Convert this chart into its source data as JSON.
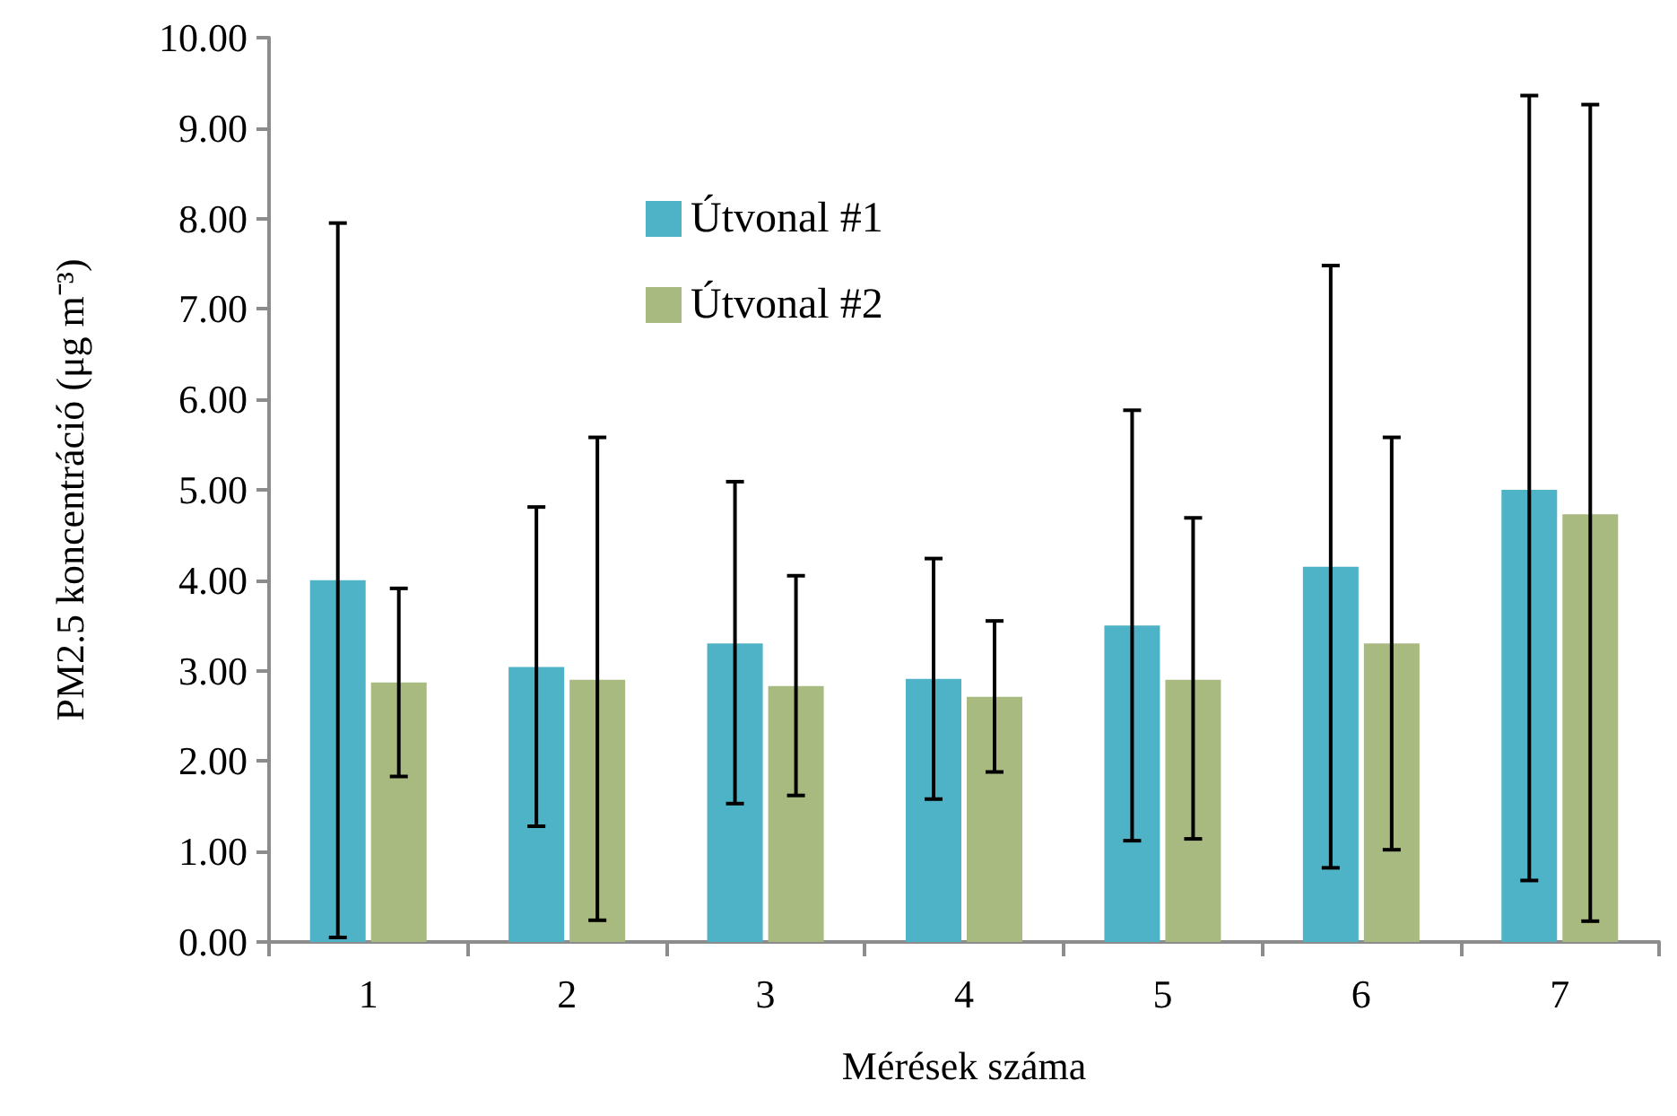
{
  "chart_data": {
    "type": "bar",
    "xlabel": "Mérések száma",
    "ylabel": "PM2.5 koncentráció (μg m⁻³)",
    "categories": [
      "1",
      "2",
      "3",
      "4",
      "5",
      "6",
      "7"
    ],
    "series": [
      {
        "name": "Útvonal #1",
        "color": "#4fb3c8",
        "values": [
          4.0,
          3.04,
          3.3,
          2.91,
          3.5,
          4.15,
          5.0
        ],
        "errors": [
          [
            0.05,
            7.95
          ],
          [
            1.28,
            4.81
          ],
          [
            1.53,
            5.09
          ],
          [
            1.58,
            4.24
          ],
          [
            1.12,
            5.88
          ],
          [
            0.82,
            7.48
          ],
          [
            0.68,
            9.36
          ]
        ]
      },
      {
        "name": "Útvonal #2",
        "color": "#a8ba7f",
        "values": [
          2.87,
          2.9,
          2.83,
          2.71,
          2.9,
          3.3,
          4.73
        ],
        "errors": [
          [
            1.83,
            3.91
          ],
          [
            0.24,
            5.58
          ],
          [
            1.62,
            4.05
          ],
          [
            1.88,
            3.55
          ],
          [
            1.14,
            4.69
          ],
          [
            1.02,
            5.58
          ],
          [
            0.23,
            9.26
          ]
        ]
      }
    ],
    "ylim": [
      0,
      10
    ],
    "yticks": [
      {
        "value": 0,
        "label": "0.00"
      },
      {
        "value": 1,
        "label": "1.00"
      },
      {
        "value": 2,
        "label": "2.00"
      },
      {
        "value": 3,
        "label": "3.00"
      },
      {
        "value": 4,
        "label": "4.00"
      },
      {
        "value": 5,
        "label": "5.00"
      },
      {
        "value": 6,
        "label": "6.00"
      },
      {
        "value": 7,
        "label": "7.00"
      },
      {
        "value": 8,
        "label": "8.00"
      },
      {
        "value": 9,
        "label": "9.00"
      },
      {
        "value": 10,
        "label": "10.00"
      }
    ],
    "grid": false,
    "legend": "top"
  }
}
